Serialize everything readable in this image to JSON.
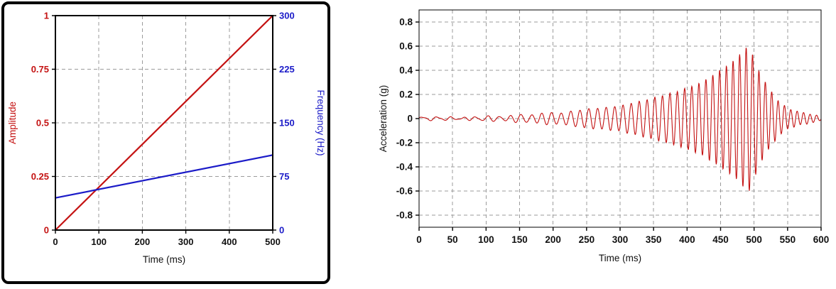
{
  "chart_data": [
    {
      "id": "sweep-profile",
      "type": "line",
      "title": "",
      "xlabel": "Time (ms)",
      "x": {
        "min": 0,
        "max": 500,
        "ticks": [
          0,
          100,
          200,
          300,
          400,
          500
        ],
        "tick_labels": [
          "0",
          "100",
          "200",
          "300",
          "400",
          "500"
        ]
      },
      "y_left": {
        "label": "Amplitude",
        "color": "#c41212",
        "min": 0,
        "max": 1,
        "ticks": [
          0,
          0.25,
          0.5,
          0.75,
          1
        ],
        "tick_labels": [
          "0",
          "0.25",
          "0.5",
          "0.75",
          "1"
        ]
      },
      "y_right": {
        "label": "Frequency (Hz)",
        "color": "#1b1bc8",
        "min": 0,
        "max": 300,
        "ticks": [
          0,
          75,
          150,
          225,
          300
        ],
        "tick_labels": [
          "0",
          "75",
          "150",
          "225",
          "300"
        ]
      },
      "series": [
        {
          "name": "amplitude",
          "axis": "left",
          "color": "#c41212",
          "points": [
            [
              0,
              0
            ],
            [
              500,
              1
            ]
          ]
        },
        {
          "name": "frequency",
          "axis": "right",
          "color": "#1b1bc8",
          "points": [
            [
              0,
              45
            ],
            [
              500,
              105
            ]
          ]
        }
      ],
      "grid": {
        "color": "#9b9b9b",
        "dash": "5 4",
        "on": true
      },
      "frame_color": "#000000",
      "legend": "none"
    },
    {
      "id": "acceleration-response",
      "type": "line",
      "title": "",
      "xlabel": "Time (ms)",
      "ylabel": "Acceleration (g)",
      "x": {
        "min": 0,
        "max": 600,
        "ticks": [
          0,
          50,
          100,
          150,
          200,
          250,
          300,
          350,
          400,
          450,
          500,
          550,
          600
        ],
        "tick_labels": [
          "0",
          "50",
          "100",
          "150",
          "200",
          "250",
          "300",
          "350",
          "400",
          "450",
          "500",
          "550",
          "600"
        ]
      },
      "y": {
        "min": -0.9,
        "max": 0.9,
        "ticks": [
          -0.8,
          -0.6,
          -0.4,
          -0.2,
          0,
          0.2,
          0.4,
          0.6,
          0.8
        ],
        "tick_labels": [
          "-0.8",
          "-0.6",
          "-0.4",
          "-0.2",
          "0",
          "0.2",
          "0.4",
          "0.6",
          "0.8"
        ]
      },
      "series": [
        {
          "name": "acceleration",
          "color": "#c41212"
        }
      ],
      "signal": {
        "kind": "linear-chirp-with-envelope",
        "sample_step_ms": 0.5,
        "frequency_sweep_hz": {
          "f0": 45,
          "f1": 105,
          "t0_ms": 0,
          "t1_ms": 500
        },
        "envelope_points_ms_g": [
          [
            0,
            0.01
          ],
          [
            60,
            0.012
          ],
          [
            100,
            0.016
          ],
          [
            140,
            0.026
          ],
          [
            180,
            0.04
          ],
          [
            220,
            0.056
          ],
          [
            260,
            0.08
          ],
          [
            300,
            0.11
          ],
          [
            340,
            0.16
          ],
          [
            380,
            0.22
          ],
          [
            420,
            0.3
          ],
          [
            450,
            0.4
          ],
          [
            470,
            0.48
          ],
          [
            485,
            0.575
          ],
          [
            492,
            0.62
          ],
          [
            500,
            0.5
          ],
          [
            510,
            0.36
          ],
          [
            522,
            0.25
          ],
          [
            535,
            0.155
          ],
          [
            550,
            0.09
          ],
          [
            570,
            0.048
          ],
          [
            600,
            0.02
          ]
        ],
        "peak": {
          "time_ms": 490,
          "amplitude_g": 0.62
        }
      },
      "grid": {
        "color": "#9b9b9b",
        "dash": "5 4",
        "on": true
      },
      "frame_color": "#000000",
      "legend": "none"
    }
  ]
}
